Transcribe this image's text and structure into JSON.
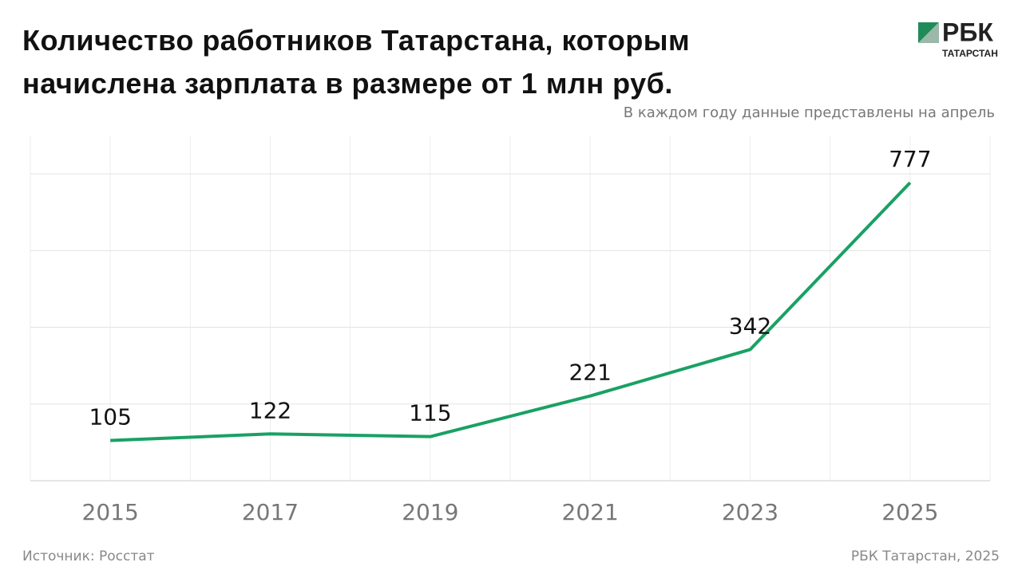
{
  "logo": {
    "text": "РБК",
    "sub": "ТАТАРСТАН"
  },
  "chart_data": {
    "type": "line",
    "title": "Количество работников Татарстана, которым начислена зарплата в размере от 1 млн руб.",
    "subtitle": "В каждом году данные представлены на апрель",
    "x": [
      2015,
      2017,
      2019,
      2021,
      2023,
      2025
    ],
    "series": [
      {
        "name": "Количество работников",
        "color": "#19a164",
        "values": [
          105,
          122,
          115,
          221,
          342,
          777
        ]
      }
    ],
    "xlim": [
      2014,
      2026
    ],
    "xticks": [
      2015,
      2017,
      2019,
      2021,
      2023,
      2025
    ],
    "ylim": [
      0,
      900
    ],
    "yticks": [
      0,
      200,
      400,
      600,
      800
    ],
    "grid": true,
    "show_ytick_labels": false,
    "legend": false,
    "source": "Источник: Росстат",
    "credit": "РБК Татарстан, 2025"
  }
}
